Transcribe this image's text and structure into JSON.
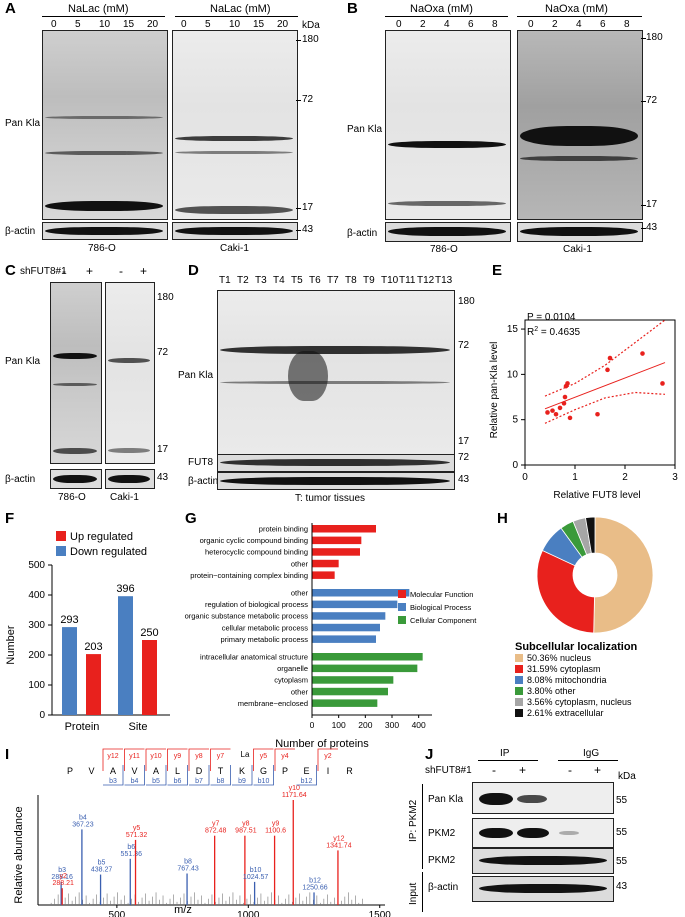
{
  "panelA": {
    "letter": "A",
    "header_left": "NaLac (mM)",
    "header_right": "NaLac (mM)",
    "lanes_left": [
      "0",
      "5",
      "10",
      "15",
      "20"
    ],
    "lanes_right": [
      "0",
      "5",
      "10",
      "15",
      "20"
    ],
    "kda": "kDa",
    "markers": [
      "180",
      "72",
      "17",
      "43"
    ],
    "ylabel": "Pan Kla",
    "actin": "β-actin",
    "cell_left": "786-O",
    "cell_right": "Caki-1"
  },
  "panelB": {
    "letter": "B",
    "header_left": "NaOxa (mM)",
    "header_right": "NaOxa (mM)",
    "lanes_left": [
      "0",
      "2",
      "4",
      "6",
      "8"
    ],
    "lanes_right": [
      "0",
      "2",
      "4",
      "6",
      "8"
    ],
    "markers": [
      "180",
      "72",
      "17",
      "43"
    ],
    "ylabel": "Pan Kla",
    "actin": "β-actin",
    "cell_left": "786-O",
    "cell_right": "Caki-1"
  },
  "panelC": {
    "letter": "C",
    "sh": "shFUT8#1",
    "lanes": [
      "-",
      "+",
      "-",
      "+"
    ],
    "markers": [
      "180",
      "72",
      "17",
      "43"
    ],
    "ylabel": "Pan Kla",
    "actin": "β-actin",
    "cell_left": "786-O",
    "cell_right": "Caki-1"
  },
  "panelD": {
    "letter": "D",
    "lanes": [
      "T1",
      "T2",
      "T3",
      "T4",
      "T5",
      "T6",
      "T7",
      "T8",
      "T9",
      "T10",
      "T11",
      "T12",
      "T13"
    ],
    "markers": [
      "180",
      "72",
      "17",
      "72",
      "43"
    ],
    "ylabel": "Pan Kla",
    "fut8": "FUT8",
    "actin": "β-actin",
    "footer": "T: tumor tissues"
  },
  "panelE": {
    "letter": "E",
    "p": "P = 0.0104",
    "r2": "R",
    "r2sup": "2",
    "r2val": " = 0.4635",
    "xlabel": "Relative FUT8 level",
    "ylabel": "Relative pan-Kla level",
    "chart_data": {
      "type": "scatter",
      "x": [
        0.45,
        0.55,
        0.62,
        0.7,
        0.78,
        0.8,
        0.82,
        0.85,
        0.9,
        1.45,
        1.65,
        1.7,
        2.35,
        2.75
      ],
      "y": [
        5.8,
        6.0,
        5.6,
        6.3,
        6.8,
        7.5,
        8.7,
        9.0,
        5.2,
        5.6,
        10.5,
        11.8,
        12.3,
        9.0
      ],
      "fit": {
        "x": [
          0.4,
          2.8
        ],
        "y": [
          6.2,
          11.3
        ]
      },
      "ci_upper": {
        "x": [
          0.4,
          1.0,
          1.6,
          2.2,
          2.8
        ],
        "y": [
          7.6,
          9.0,
          11.0,
          13.5,
          16.0
        ]
      },
      "ci_lower": {
        "x": [
          0.4,
          1.0,
          1.6,
          2.2,
          2.8
        ],
        "y": [
          4.6,
          6.1,
          7.4,
          8.0,
          7.8
        ]
      },
      "xticks": [
        "0",
        "1",
        "2",
        "3"
      ],
      "yticks": [
        "0",
        "5",
        "10",
        "15"
      ],
      "xlim": [
        0,
        3
      ],
      "ylim": [
        0,
        16
      ]
    }
  },
  "panelF": {
    "letter": "F",
    "legend": [
      "Up regulated",
      "Down regulated"
    ],
    "colors": {
      "up": "#e8211d",
      "down": "#4a7fc1"
    },
    "ylabel": "Number",
    "chart_data": {
      "type": "bar",
      "categories": [
        "Protein",
        "Site"
      ],
      "series": [
        {
          "name": "Down regulated",
          "values": [
            293,
            396
          ]
        },
        {
          "name": "Up regulated",
          "values": [
            203,
            250
          ]
        }
      ],
      "yticks": [
        "0",
        "100",
        "200",
        "300",
        "400",
        "500"
      ],
      "ylim": [
        0,
        500
      ]
    }
  },
  "panelG": {
    "letter": "G",
    "xlabel": "Number of proteins",
    "legend": [
      "Molecular Function",
      "Biological Process",
      "Cellular Component"
    ],
    "colors": {
      "mf": "#e8211d",
      "bp": "#4a7fc1",
      "cc": "#3a9a3a"
    },
    "chart_data": {
      "type": "bar",
      "orientation": "horizontal",
      "categories": [
        "protein binding",
        "organic cyclic compound binding",
        "heterocyclic compound binding",
        "other",
        "protein−containing complex binding",
        "other",
        "regulation of biological process",
        "organic substance metabolic process",
        "cellular metabolic process",
        "primary metabolic process",
        "intracellular anatomical structure",
        "organelle",
        "cytoplasm",
        "other",
        "membrane−enclosed"
      ],
      "values": [
        240,
        185,
        180,
        100,
        85,
        365,
        320,
        275,
        255,
        240,
        415,
        395,
        305,
        285,
        245
      ],
      "groups": [
        "mf",
        "mf",
        "mf",
        "mf",
        "mf",
        "bp",
        "bp",
        "bp",
        "bp",
        "bp",
        "cc",
        "cc",
        "cc",
        "cc",
        "cc"
      ],
      "xticks": [
        "0",
        "100",
        "200",
        "300",
        "400"
      ],
      "xlim": [
        0,
        450
      ]
    }
  },
  "panelH": {
    "letter": "H",
    "title": "Subcellular localization",
    "chart_data": {
      "type": "pie",
      "labels": [
        "50.36%  nucleus",
        "31.59%  cytoplasm",
        "8.08%  mitochondria",
        "3.80%  other",
        "3.56%  cytoplasm, nucleus",
        "2.61%  extracellular"
      ],
      "values": [
        50.36,
        31.59,
        8.08,
        3.8,
        3.56,
        2.61
      ],
      "colors": [
        "#e9bd88",
        "#e8211d",
        "#4a7fc1",
        "#3a9a3a",
        "#a6a6a6",
        "#111111"
      ]
    }
  },
  "panelI": {
    "letter": "I",
    "ylabel": "Relative abundance",
    "xlabel": "m/z",
    "seq": [
      "P",
      "V",
      "A",
      "V",
      "A",
      "L",
      "D",
      "T",
      "K",
      "G",
      "P",
      "E",
      "I",
      "R"
    ],
    "la": "La",
    "yions": [
      "y12",
      "y11",
      "y10",
      "y9",
      "y8",
      "y7",
      "La",
      "y5",
      "y4",
      "",
      "y2"
    ],
    "bions": [
      "b3",
      "b4",
      "b5",
      "b6",
      "b7",
      "b8",
      "b9",
      "b10",
      "",
      "b12"
    ],
    "chart_data": {
      "type": "bar",
      "note_peaks": [
        {
          "label": "b3",
          "mz": "288.16",
          "x": 288,
          "y": 0.22,
          "c": "b"
        },
        {
          "label": "y2",
          "mz": "288.21",
          "x": 292,
          "y": 0.16,
          "c": "y"
        },
        {
          "label": "b4",
          "mz": "367.23",
          "x": 367,
          "y": 0.72,
          "c": "b"
        },
        {
          "label": "b5",
          "mz": "438.27",
          "x": 438,
          "y": 0.29,
          "c": "b"
        },
        {
          "label": "b6",
          "mz": "551.36",
          "x": 551,
          "y": 0.44,
          "c": "b"
        },
        {
          "label": "y5",
          "mz": "571.32",
          "x": 571,
          "y": 0.62,
          "c": "y"
        },
        {
          "label": "b8",
          "mz": "767.43",
          "x": 767,
          "y": 0.3,
          "c": "b"
        },
        {
          "label": "y7",
          "mz": "872.48",
          "x": 872,
          "y": 0.66,
          "c": "y"
        },
        {
          "label": "y8",
          "mz": "987.51",
          "x": 987,
          "y": 0.66,
          "c": "y"
        },
        {
          "label": "b10",
          "mz": "1024.57",
          "x": 1024,
          "y": 0.22,
          "c": "b"
        },
        {
          "label": "y9",
          "mz": "1100.6",
          "x": 1100,
          "y": 0.66,
          "c": "y"
        },
        {
          "label": "y10",
          "mz": "1171.64",
          "x": 1171,
          "y": 1.0,
          "c": "y"
        },
        {
          "label": "b12",
          "mz": "1250.66",
          "x": 1250,
          "y": 0.12,
          "c": "b"
        },
        {
          "label": "y12",
          "mz": "1341.74",
          "x": 1341,
          "y": 0.52,
          "c": "y"
        }
      ],
      "xticks": [
        "500",
        "1000",
        "1500"
      ],
      "xlim": [
        200,
        1520
      ]
    }
  },
  "panelJ": {
    "letter": "J",
    "ip": "IP",
    "igg": "IgG",
    "sh": "shFUT8#1",
    "lanes": [
      "-",
      "+",
      "-",
      "+"
    ],
    "kda": "kDa",
    "ip_label": "IP: PKM2",
    "input_label": "Input",
    "rows": [
      "Pan Kla",
      "PKM2",
      "PKM2",
      "β-actin"
    ],
    "markers": [
      "55",
      "55",
      "55",
      "43"
    ]
  }
}
